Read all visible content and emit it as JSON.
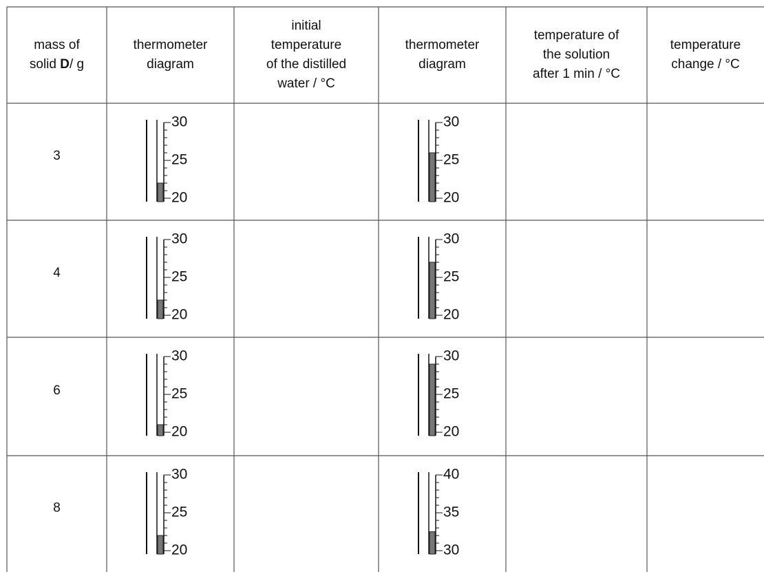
{
  "table": {
    "headers": [
      {
        "lines": [
          "mass of"
        ],
        "prefix": "solid ",
        "bold": "D",
        "suffix": "/ g"
      },
      {
        "lines": [
          "thermometer",
          "diagram"
        ]
      },
      {
        "lines": [
          "initial",
          "temperature",
          "of the distilled",
          "water / °C"
        ]
      },
      {
        "lines": [
          "thermometer",
          "diagram"
        ]
      },
      {
        "lines": [
          "temperature of",
          "the solution",
          "after 1 min / °C"
        ]
      },
      {
        "lines": [
          "temperature",
          "change / °C"
        ]
      }
    ],
    "rows": [
      {
        "mass": "3",
        "initial": {
          "min": 20,
          "max": 30,
          "labels": [
            30,
            25,
            20
          ],
          "reading": 22
        },
        "final": {
          "min": 20,
          "max": 30,
          "labels": [
            30,
            25,
            20
          ],
          "reading": 26
        }
      },
      {
        "mass": "4",
        "initial": {
          "min": 20,
          "max": 30,
          "labels": [
            30,
            25,
            20
          ],
          "reading": 22
        },
        "final": {
          "min": 20,
          "max": 30,
          "labels": [
            30,
            25,
            20
          ],
          "reading": 27
        }
      },
      {
        "mass": "6",
        "initial": {
          "min": 20,
          "max": 30,
          "labels": [
            30,
            25,
            20
          ],
          "reading": 21
        },
        "final": {
          "min": 20,
          "max": 30,
          "labels": [
            30,
            25,
            20
          ],
          "reading": 29
        }
      },
      {
        "mass": "8",
        "initial": {
          "min": 20,
          "max": 30,
          "labels": [
            30,
            25,
            20
          ],
          "reading": 22
        },
        "final": {
          "min": 30,
          "max": 40,
          "labels": [
            40,
            35,
            30
          ],
          "reading": 32.5
        }
      }
    ]
  }
}
